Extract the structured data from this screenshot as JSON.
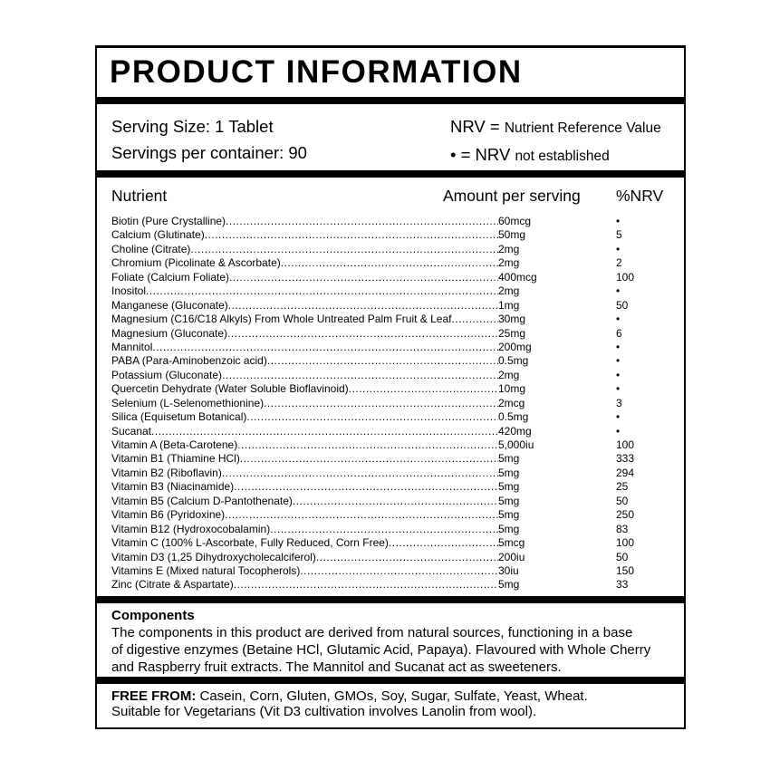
{
  "label": {
    "title": "PRODUCT INFORMATION",
    "serving": {
      "size": "Serving Size: 1 Tablet",
      "per_container": "Servings per container: 90",
      "nrv_definition_prefix": "NRV =",
      "nrv_definition_rest": "Nutrient Reference Value",
      "bullet_definition_prefix": "• = NRV",
      "bullet_definition_rest": "not established"
    },
    "table": {
      "headers": {
        "nutrient": "Nutrient",
        "amount": "Amount per serving",
        "nrv": "%NRV"
      },
      "rows": [
        {
          "name": "Biotin (Pure Crystalline)",
          "amount": "60mcg",
          "nrv": "•"
        },
        {
          "name": "Calcium (Glutinate)",
          "amount": "50mg",
          "nrv": "5"
        },
        {
          "name": "Choline (Citrate)",
          "amount": "2mg",
          "nrv": "•"
        },
        {
          "name": "Chromium (Picolinate & Ascorbate)",
          "amount": "2mg",
          "nrv": "2"
        },
        {
          "name": "Foliate (Calcium Foliate)",
          "amount": "400mcg",
          "nrv": "100"
        },
        {
          "name": "Inositol",
          "amount": "2mg",
          "nrv": "•"
        },
        {
          "name": "Manganese (Gluconate)",
          "amount": "1mg",
          "nrv": "50"
        },
        {
          "name": "Magnesium (C16/C18 Alkyls) From Whole Untreated Palm Fruit & Leaf",
          "amount": "30mg",
          "nrv": "•"
        },
        {
          "name": "Magnesium (Gluconate)",
          "amount": "25mg",
          "nrv": "6"
        },
        {
          "name": "Mannitol",
          "amount": "200mg",
          "nrv": "•"
        },
        {
          "name": "PABA (Para-Aminobenzoic acid)",
          "amount": "0.5mg",
          "nrv": "•"
        },
        {
          "name": "Potassium (Gluconate)",
          "amount": "2mg",
          "nrv": "•"
        },
        {
          "name": "Quercetin Dehydrate (Water Soluble Bioflavinoid)",
          "amount": "10mg",
          "nrv": "•"
        },
        {
          "name": "Selenium (L-Selenomethionine)",
          "amount": "2mcg",
          "nrv": "3"
        },
        {
          "name": "Silica (Equisetum Botanical)",
          "amount": "0.5mg",
          "nrv": "•"
        },
        {
          "name": "Sucanat",
          "amount": "420mg",
          "nrv": "•"
        },
        {
          "name": "Vitamin A (Beta-Carotene)",
          "amount": "5,000iu",
          "nrv": "100"
        },
        {
          "name": "Vitamin B1 (Thiamine HCl)",
          "amount": "5mg",
          "nrv": "333"
        },
        {
          "name": "Vitamin B2 (Riboflavin)",
          "amount": "5mg",
          "nrv": "294"
        },
        {
          "name": "Vitamin B3 (Niacinamide)",
          "amount": "5mg",
          "nrv": "25"
        },
        {
          "name": "Vitamin B5 (Calcium D-Pantothenate)",
          "amount": "5mg",
          "nrv": "50"
        },
        {
          "name": "Vitamin B6 (Pyridoxine)",
          "amount": "5mg",
          "nrv": "250"
        },
        {
          "name": "Vitamin B12 (Hydroxocobalamin)",
          "amount": "5mg",
          "nrv": "83"
        },
        {
          "name": "Vitamin C (100% L-Ascorbate, Fully Reduced, Corn Free)",
          "amount": "5mcg",
          "nrv": "100"
        },
        {
          "name": "Vitamin D3 (1,25 Dihydroxycholecalciferol)",
          "amount": "200iu",
          "nrv": "50"
        },
        {
          "name": "Vitamins E (Mixed natural Tocopherols)",
          "amount": "30iu",
          "nrv": "150"
        },
        {
          "name": "Zinc (Citrate & Aspartate)",
          "amount": "5mg",
          "nrv": "33"
        }
      ]
    },
    "components": {
      "heading": "Components",
      "lines": [
        "The components in this product are derived from natural sources, functioning in a base",
        "of digestive enzymes (Betaine HCl, Glutamic Acid, Papaya). Flavoured with Whole Cherry",
        "and Raspberry fruit extracts. The Mannitol and Sucanat act as sweeteners."
      ]
    },
    "free_from": {
      "heading": "FREE FROM:",
      "items": " Casein, Corn, Gluten, GMOs, Soy, Sugar, Sulfate, Yeast, Wheat.",
      "note": "Suitable for Vegetarians (Vit D3 cultivation involves Lanolin from wool)."
    },
    "colors": {
      "text": "#000000",
      "background": "#ffffff",
      "border": "#000000"
    }
  }
}
